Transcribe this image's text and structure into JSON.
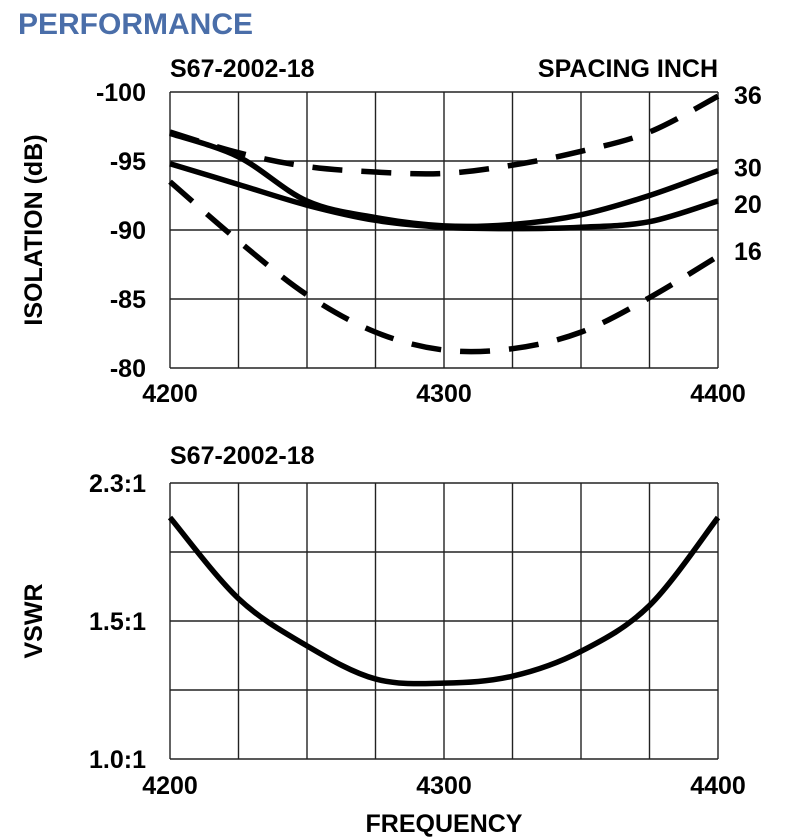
{
  "page_title": "PERFORMANCE",
  "colors": {
    "title": "#4a6ea9",
    "lines": "#000000",
    "grid": "#222222"
  },
  "chart_data": [
    {
      "type": "line",
      "subtitle": "S67-2002-18",
      "legend_title": "SPACING INCH",
      "legend_placement": "right, at line ends",
      "xlabel": "",
      "ylabel": "ISOLATION (dB)",
      "xlim": [
        4200,
        4400
      ],
      "ylim": [
        -100,
        -80
      ],
      "x_ticks": [
        {
          "value": 4200,
          "label": "4200"
        },
        {
          "value": 4300,
          "label": "4300"
        },
        {
          "value": 4400,
          "label": "4400"
        }
      ],
      "y_ticks": [
        {
          "value": -100,
          "label": "-100"
        },
        {
          "value": -95,
          "label": "-95"
        },
        {
          "value": -90,
          "label": "-90"
        },
        {
          "value": -85,
          "label": "-85"
        },
        {
          "value": -80,
          "label": "-80"
        }
      ],
      "grid": true,
      "x_grid_step": 25,
      "x": [
        4200,
        4225,
        4250,
        4275,
        4300,
        4325,
        4350,
        4375,
        4400
      ],
      "series": [
        {
          "name": "36",
          "style": "dashed",
          "values": [
            -97.1,
            -95.6,
            -94.6,
            -94.2,
            -94.1,
            -94.7,
            -95.7,
            -97.1,
            -99.7
          ]
        },
        {
          "name": "30",
          "style": "solid",
          "values": [
            -97.0,
            -95.3,
            -92.1,
            -90.9,
            -90.3,
            -90.4,
            -91.1,
            -92.5,
            -94.3
          ]
        },
        {
          "name": "20",
          "style": "solid",
          "values": [
            -94.8,
            -93.3,
            -91.8,
            -90.7,
            -90.2,
            -90.1,
            -90.2,
            -90.6,
            -92.1
          ]
        },
        {
          "name": "16",
          "style": "dashed",
          "values": [
            -93.5,
            -89.2,
            -85.3,
            -82.6,
            -81.3,
            -81.4,
            -82.6,
            -85.1,
            -88.1
          ]
        }
      ]
    },
    {
      "type": "line",
      "subtitle": "S67-2002-18",
      "xlabel": "FREQUENCY",
      "ylabel": "VSWR",
      "xlim": [
        4200,
        4400
      ],
      "ylim": [
        1.0,
        2.3
      ],
      "x_ticks": [
        {
          "value": 4200,
          "label": "4200"
        },
        {
          "value": 4300,
          "label": "4300"
        },
        {
          "value": 4400,
          "label": "4400"
        }
      ],
      "y_ticks": [
        {
          "value": 2.3,
          "label": "2.3:1"
        },
        {
          "value": 1.5,
          "label": "1.5:1"
        },
        {
          "value": 1.0,
          "label": "1.0:1"
        }
      ],
      "grid": true,
      "x_grid_step": 25,
      "x": [
        4200,
        4225,
        4250,
        4275,
        4300,
        4325,
        4350,
        4375,
        4400
      ],
      "series": [
        {
          "style": "solid",
          "values": [
            2.1,
            1.63,
            1.41,
            1.29,
            1.275,
            1.3,
            1.39,
            1.59,
            2.1
          ]
        }
      ]
    }
  ]
}
